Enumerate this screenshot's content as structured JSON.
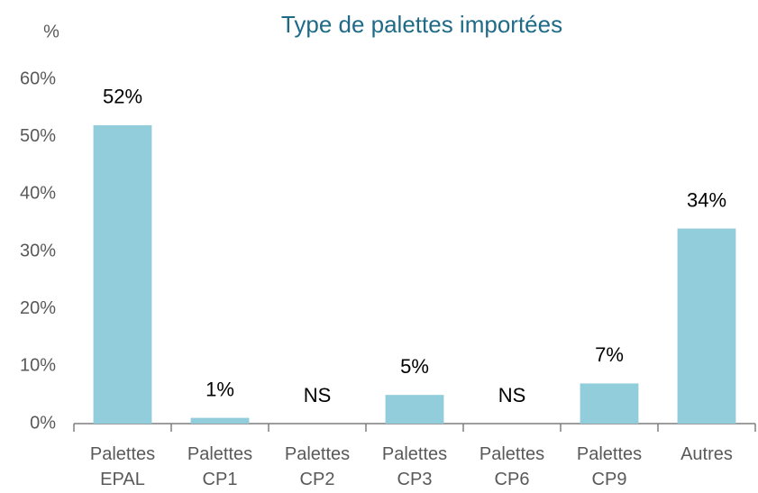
{
  "chart_data": {
    "type": "bar",
    "title": "Type de palettes importées",
    "ylabel": "%",
    "categories": [
      "Palettes EPAL",
      "Palettes CP1",
      "Palettes CP2",
      "Palettes CP3",
      "Palettes CP6",
      "Palettes CP9",
      "Autres"
    ],
    "values": [
      52,
      1,
      null,
      5,
      null,
      7,
      34
    ],
    "value_labels": [
      "52%",
      "1%",
      "NS",
      "5%",
      "NS",
      "7%",
      "34%"
    ],
    "color": "#92cddc",
    "ylim": [
      0,
      60
    ],
    "yticks": [
      {
        "value": 0,
        "label": "0%"
      },
      {
        "value": 10,
        "label": "10%"
      },
      {
        "value": 20,
        "label": "20%"
      },
      {
        "value": 30,
        "label": "30%"
      },
      {
        "value": 40,
        "label": "40%"
      },
      {
        "value": 50,
        "label": "50%"
      },
      {
        "value": 60,
        "label": "60%"
      }
    ],
    "grid": false
  }
}
